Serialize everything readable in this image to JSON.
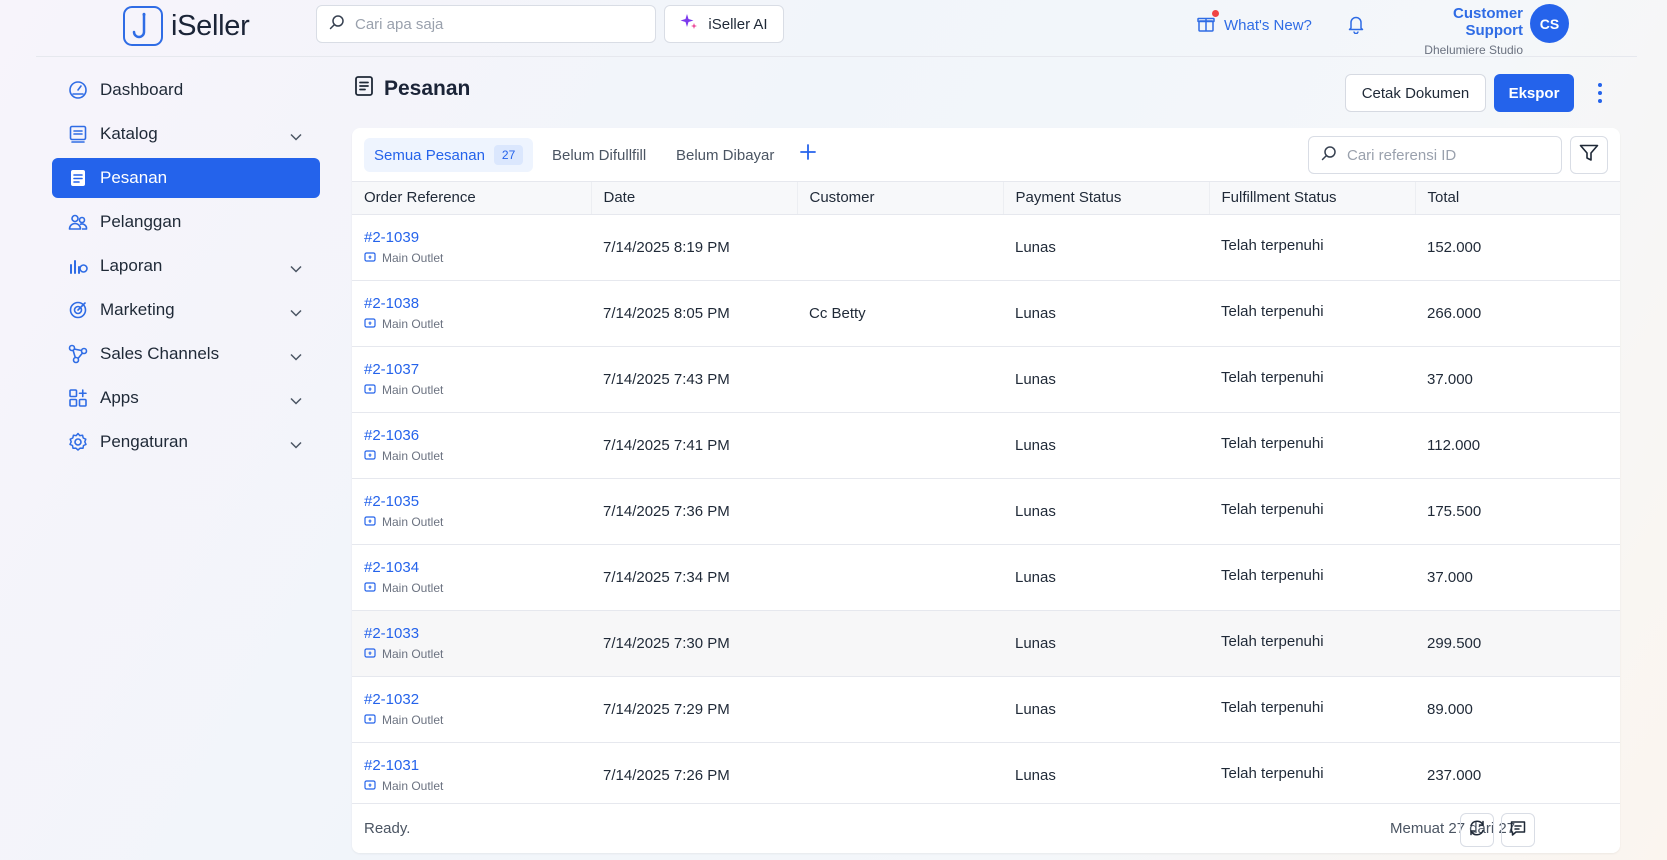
{
  "app": {
    "name": "iSeller",
    "accent": "#2463eb"
  },
  "header": {
    "search_placeholder": "Cari apa saja",
    "ai_label": "iSeller AI",
    "whats_new": "What's New?",
    "user_name": "Customer Support",
    "user_org": "Dhelumiere Studio",
    "avatar_initials": "CS"
  },
  "sidebar": {
    "items": [
      {
        "label": "Dashboard",
        "icon": "dashboard-icon",
        "active": false,
        "expandable": false
      },
      {
        "label": "Katalog",
        "icon": "catalog-icon",
        "active": false,
        "expandable": true
      },
      {
        "label": "Pesanan",
        "icon": "orders-icon",
        "active": true,
        "expandable": false
      },
      {
        "label": "Pelanggan",
        "icon": "customers-icon",
        "active": false,
        "expandable": false
      },
      {
        "label": "Laporan",
        "icon": "reports-icon",
        "active": false,
        "expandable": true
      },
      {
        "label": "Marketing",
        "icon": "marketing-icon",
        "active": false,
        "expandable": true
      },
      {
        "label": "Sales Channels",
        "icon": "sales-channels-icon",
        "active": false,
        "expandable": true
      },
      {
        "label": "Apps",
        "icon": "apps-icon",
        "active": false,
        "expandable": true
      },
      {
        "label": "Pengaturan",
        "icon": "settings-icon",
        "active": false,
        "expandable": true
      }
    ]
  },
  "page": {
    "title": "Pesanan",
    "cetak_label": "Cetak Dokumen",
    "ekspor_label": "Ekspor"
  },
  "tabs": {
    "all_label": "Semua Pesanan",
    "all_count": "27",
    "unfulfilled_label": "Belum Difullfill",
    "unpaid_label": "Belum Dibayar",
    "ref_search_placeholder": "Cari referensi ID"
  },
  "table": {
    "columns": [
      "Order Reference",
      "Date",
      "Customer",
      "Payment Status",
      "Fulfillment Status",
      "Total"
    ],
    "rows": [
      {
        "ref": "#2-1039",
        "outlet": "Main Outlet",
        "date": "7/14/2025 8:19 PM",
        "customer": "",
        "payment": "Lunas",
        "fulfillment": "Telah terpenuhi",
        "total": "152.000"
      },
      {
        "ref": "#2-1038",
        "outlet": "Main Outlet",
        "date": "7/14/2025 8:05 PM",
        "customer": "Cc Betty",
        "payment": "Lunas",
        "fulfillment": "Telah terpenuhi",
        "total": "266.000"
      },
      {
        "ref": "#2-1037",
        "outlet": "Main Outlet",
        "date": "7/14/2025 7:43 PM",
        "customer": "",
        "payment": "Lunas",
        "fulfillment": "Telah terpenuhi",
        "total": "37.000"
      },
      {
        "ref": "#2-1036",
        "outlet": "Main Outlet",
        "date": "7/14/2025 7:41 PM",
        "customer": "",
        "payment": "Lunas",
        "fulfillment": "Telah terpenuhi",
        "total": "112.000"
      },
      {
        "ref": "#2-1035",
        "outlet": "Main Outlet",
        "date": "7/14/2025 7:36 PM",
        "customer": "",
        "payment": "Lunas",
        "fulfillment": "Telah terpenuhi",
        "total": "175.500"
      },
      {
        "ref": "#2-1034",
        "outlet": "Main Outlet",
        "date": "7/14/2025 7:34 PM",
        "customer": "",
        "payment": "Lunas",
        "fulfillment": "Telah terpenuhi",
        "total": "37.000"
      },
      {
        "ref": "#2-1033",
        "outlet": "Main Outlet",
        "date": "7/14/2025 7:30 PM",
        "customer": "",
        "payment": "Lunas",
        "fulfillment": "Telah terpenuhi",
        "total": "299.500"
      },
      {
        "ref": "#2-1032",
        "outlet": "Main Outlet",
        "date": "7/14/2025 7:29 PM",
        "customer": "",
        "payment": "Lunas",
        "fulfillment": "Telah terpenuhi",
        "total": "89.000"
      },
      {
        "ref": "#2-1031",
        "outlet": "Main Outlet",
        "date": "7/14/2025 7:26 PM",
        "customer": "",
        "payment": "Lunas",
        "fulfillment": "Telah terpenuhi",
        "total": "237.000"
      }
    ]
  },
  "footer": {
    "status": "Ready.",
    "loaded": "Memuat 27 dari 27"
  }
}
